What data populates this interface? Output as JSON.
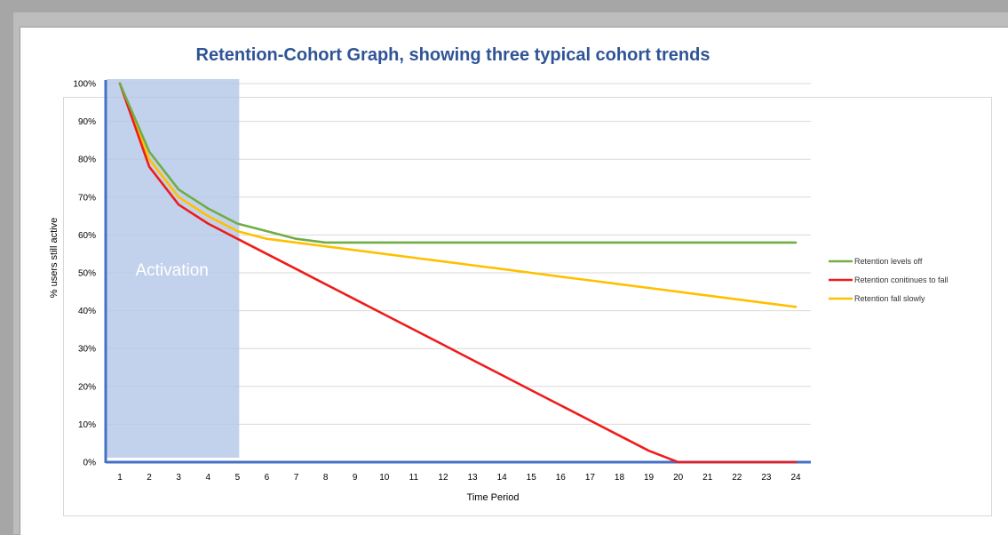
{
  "chart_data": {
    "type": "line",
    "title": "Retention-Cohort Graph, showing three typical cohort trends",
    "xlabel": "Time Period",
    "ylabel": "% users still active",
    "x": [
      1,
      2,
      3,
      4,
      5,
      6,
      7,
      8,
      9,
      10,
      11,
      12,
      13,
      14,
      15,
      16,
      17,
      18,
      19,
      20,
      21,
      22,
      23,
      24
    ],
    "ylim": [
      0,
      100
    ],
    "yticks": [
      "0%",
      "10%",
      "20%",
      "30%",
      "40%",
      "50%",
      "60%",
      "70%",
      "80%",
      "90%",
      "100%"
    ],
    "grid": true,
    "legend_position": "right",
    "series": [
      {
        "name": "Retention levels off",
        "color": "#70ad47",
        "values": [
          100,
          82,
          72,
          67,
          63,
          61,
          59,
          58,
          58,
          58,
          58,
          58,
          58,
          58,
          58,
          58,
          58,
          58,
          58,
          58,
          58,
          58,
          58,
          58
        ]
      },
      {
        "name": "Retention conitinues to fall",
        "color": "#ee1c1c",
        "values": [
          100,
          78,
          68,
          63,
          59,
          55,
          51,
          47,
          43,
          39,
          35,
          31,
          27,
          23,
          19,
          15,
          11,
          7,
          3,
          0,
          0,
          0,
          0,
          0
        ]
      },
      {
        "name": "Retention fall slowly",
        "color": "#ffc000",
        "values": [
          100,
          80,
          70,
          65,
          61,
          59,
          58,
          57,
          56,
          55,
          54,
          53,
          52,
          51,
          50,
          49,
          48,
          47,
          46,
          45,
          44,
          43,
          42,
          41
        ]
      }
    ],
    "annotations": [
      {
        "label": "Activation",
        "x_from": 1,
        "x_to": 5,
        "color": "#b4c7e7"
      }
    ]
  }
}
